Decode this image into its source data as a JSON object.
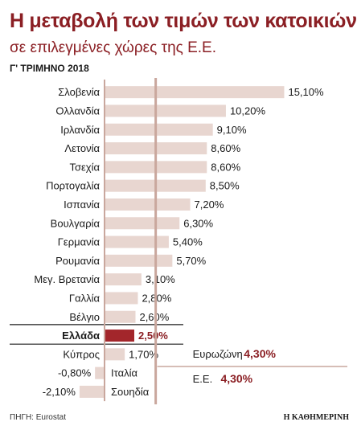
{
  "header": {
    "title": "Η μεταβολή των τιμών των κατοικιών",
    "subtitle": "σε επιλεγμένες χώρες της Ε.Ε.",
    "period": "Γ' ΤΡΙΜΗΝΟ 2018"
  },
  "footer": {
    "source": "ΠΗΓΗ: Eurostat",
    "brand": "Η ΚΑΘΗΜΕΡΙΝΗ"
  },
  "colors": {
    "bar": "#e8d6d0",
    "highlight": "#a3262b",
    "axis": "#c9a79d",
    "value_text": "#8b1f24",
    "title": "#8b1f24"
  },
  "chart_data": {
    "type": "bar",
    "orientation": "horizontal",
    "categories": [
      "Σλοβενία",
      "Ολλανδία",
      "Ιρλανδία",
      "Λετονία",
      "Τσεχία",
      "Πορτογαλία",
      "Ισπανία",
      "Βουλγαρία",
      "Γερμανία",
      "Ρουμανία",
      "Μεγ. Βρετανία",
      "Γαλλία",
      "Βέλγιο",
      "Ελλάδα",
      "Κύπρος",
      "Ιταλία",
      "Σουηδία"
    ],
    "values": [
      15.1,
      10.2,
      9.1,
      8.6,
      8.6,
      8.5,
      7.2,
      6.3,
      5.4,
      5.7,
      3.1,
      2.8,
      2.6,
      2.5,
      1.7,
      -0.8,
      -2.1
    ],
    "value_labels": [
      "15,10%",
      "10,20%",
      "9,10%",
      "8,60%",
      "8,60%",
      "8,50%",
      "7,20%",
      "6,30%",
      "5,40%",
      "5,70%",
      "3,10%",
      "2,80%",
      "2,60%",
      "2,50%",
      "1,70%",
      "-0,80%",
      "-2,10%"
    ],
    "highlight": "Ελλάδα",
    "xlim": [
      -2.5,
      15.5
    ],
    "annotations": [
      {
        "label": "Ευρωζώνη",
        "value_label": "4,30%",
        "value": 4.3
      },
      {
        "label": "Ε.Ε.",
        "value_label": "4,30%",
        "value": 4.3
      }
    ],
    "grid": false,
    "legend": "none"
  }
}
